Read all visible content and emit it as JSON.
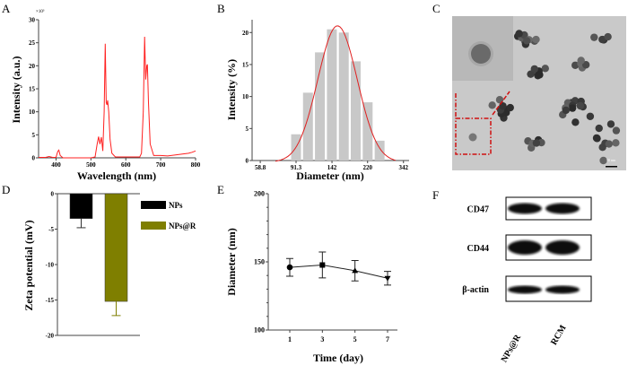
{
  "panels": {
    "a": "A",
    "b": "B",
    "c": "C",
    "d": "D",
    "e": "E",
    "f": "F"
  },
  "colors": {
    "spectrum": "#ff2020",
    "histogram": "#c8c8c8",
    "fit": "#e02020",
    "nps": "#000000",
    "npsr": "#7f7f00",
    "tem_marker": "#d01010"
  },
  "chart_data": [
    {
      "panel": "A",
      "type": "line",
      "xlabel": "Wavelength (nm)",
      "ylabel": "Intensity (a.u.)",
      "y_multiplier": "×10³",
      "xlim": [
        350,
        800
      ],
      "ylim": [
        0,
        30
      ],
      "xticks": [
        400,
        500,
        600,
        700,
        800
      ],
      "yticks": [
        0,
        5,
        10,
        15,
        20,
        25,
        30
      ],
      "x": [
        350,
        370,
        380,
        390,
        400,
        405,
        408,
        412,
        420,
        500,
        512,
        518,
        522,
        526,
        530,
        534,
        538,
        541,
        544,
        546,
        548,
        551,
        555,
        560,
        570,
        640,
        645,
        650,
        654,
        657,
        660,
        662,
        665,
        670,
        680,
        700,
        720,
        740,
        760,
        780,
        790,
        800
      ],
      "y": [
        0.1,
        0.1,
        0.3,
        0.1,
        0.1,
        1.4,
        1.7,
        0.5,
        0,
        0,
        0.2,
        3,
        4.6,
        3,
        4.5,
        1.5,
        10,
        24.8,
        12,
        11.5,
        12.5,
        10,
        4,
        1,
        0.2,
        0.2,
        1,
        10,
        26.3,
        17,
        20,
        20.3,
        12,
        3,
        0.5,
        0.5,
        0.4,
        0.6,
        0.8,
        1,
        1.2,
        1.5
      ]
    },
    {
      "panel": "B",
      "type": "bar",
      "xlabel": "Diameter (nm)",
      "ylabel": "Intensity (%)",
      "xscale": "log",
      "xtick_labels": [
        "58.8",
        "91.3",
        "142",
        "220",
        "342"
      ],
      "ylim": [
        0,
        22
      ],
      "yticks": [
        0,
        5,
        10,
        15,
        20
      ],
      "categories": [
        91.3,
        105.7,
        122.4,
        141.8,
        164.2,
        190.1,
        220.2,
        255.0
      ],
      "values": [
        4.1,
        10.6,
        16.9,
        20.5,
        20.0,
        15.5,
        9.1,
        3.1
      ],
      "fit": {
        "type": "gaussian",
        "peak": 21.3,
        "center_nm": 152
      }
    },
    {
      "panel": "D",
      "type": "bar",
      "ylabel": "Zeta potential (mV)",
      "ylim": [
        -20,
        0
      ],
      "yticks": [
        0,
        -5,
        -10,
        -15,
        -20
      ],
      "series": [
        {
          "name": "NPs",
          "value": -3.5,
          "error": 1.3
        },
        {
          "name": "NPs@R",
          "value": -15.2,
          "error": 2.0
        }
      ],
      "legend": "right"
    },
    {
      "panel": "E",
      "type": "line",
      "xlabel": "Time (day)",
      "ylabel": "Diameter (nm)",
      "ylim": [
        100,
        200
      ],
      "yticks": [
        100,
        150,
        200
      ],
      "xticks": [
        1,
        3,
        5,
        7
      ],
      "x": [
        1,
        3,
        5,
        7
      ],
      "y": [
        146,
        147.7,
        143.5,
        138
      ],
      "error": [
        6.5,
        9.5,
        7.5,
        5
      ],
      "markers": [
        "circle",
        "square",
        "triangle-up",
        "triangle-down"
      ]
    }
  ],
  "tem": {
    "scale_bar": "50 nm"
  },
  "western": {
    "bands": [
      "CD47",
      "CD44",
      "β-actin"
    ],
    "lanes": [
      "NPs@R",
      "RCM"
    ]
  }
}
